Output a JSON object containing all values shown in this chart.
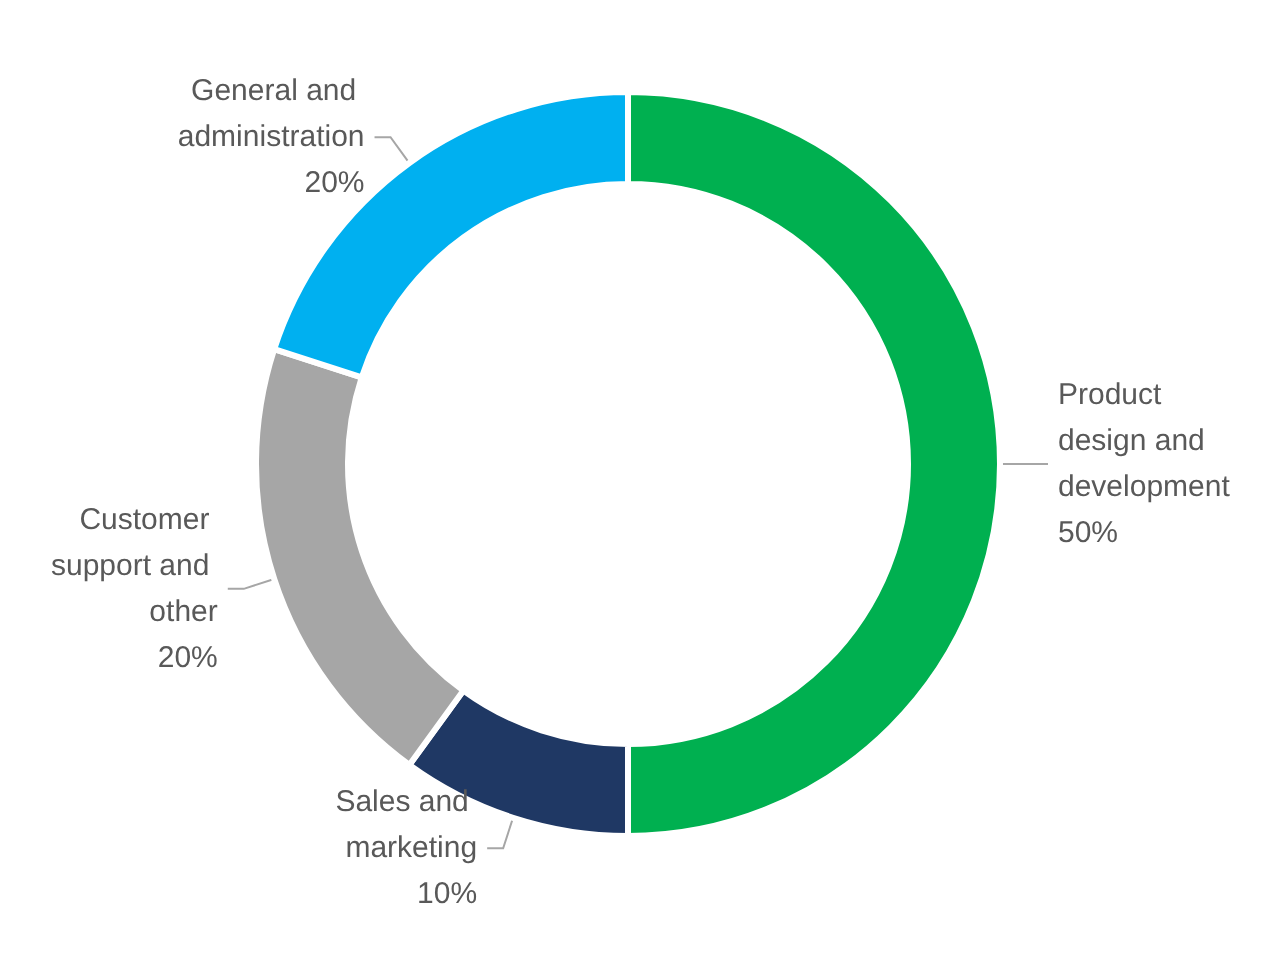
{
  "chart_data": {
    "type": "donut",
    "categories": [
      "Product design and development",
      "Sales and marketing",
      "Customer support and other",
      "General and administration"
    ],
    "values": [
      50,
      10,
      20,
      20
    ],
    "value_labels": [
      "50%",
      "10%",
      "20%",
      "20%"
    ],
    "colors": [
      "#00b050",
      "#1f3864",
      "#a6a6a6",
      "#00b0f0"
    ],
    "legend": false
  }
}
